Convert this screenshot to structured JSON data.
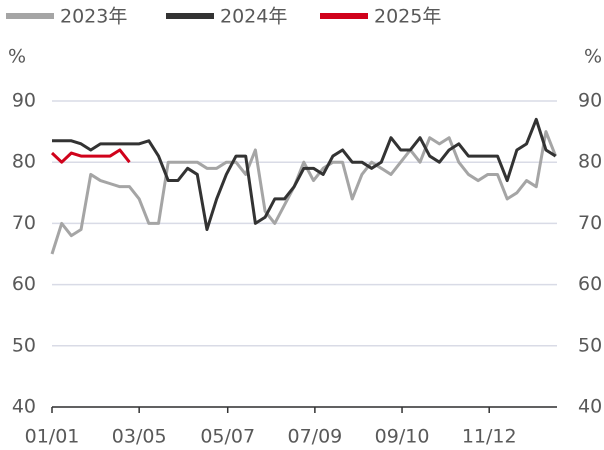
{
  "chart_data": {
    "type": "line",
    "y_unit": "%",
    "x": [
      0,
      7,
      14,
      21,
      28,
      35,
      42,
      49,
      56,
      63,
      70,
      77,
      84,
      91,
      98,
      105,
      112,
      119,
      126,
      133,
      140,
      147,
      154,
      161,
      168,
      175,
      182,
      189,
      196,
      203,
      210,
      217,
      224,
      231,
      238,
      245,
      252,
      259,
      266,
      273,
      280,
      287,
      294,
      301,
      308,
      315,
      322,
      329,
      336,
      343,
      350,
      357,
      364
    ],
    "xlim": [
      0,
      365
    ],
    "xticks": [
      {
        "value": 0,
        "label": "01/01"
      },
      {
        "value": 63,
        "label": "03/05"
      },
      {
        "value": 127,
        "label": "05/07"
      },
      {
        "value": 190,
        "label": "07/09"
      },
      {
        "value": 253,
        "label": "09/10"
      },
      {
        "value": 316,
        "label": "11/12"
      }
    ],
    "ylim": [
      40,
      90
    ],
    "yticks": [
      40,
      50,
      60,
      70,
      80,
      90
    ],
    "y2lim": [
      40,
      90
    ],
    "y2ticks": [
      40,
      50,
      60,
      70,
      80,
      90
    ],
    "grid": true,
    "legend": "top",
    "series": [
      {
        "name": "2023年",
        "color": "#a5a5a5",
        "values": [
          65,
          70,
          68,
          69,
          78,
          77,
          76.5,
          76,
          76,
          74,
          70,
          70,
          80,
          80,
          80,
          80,
          79,
          79,
          80,
          80,
          78,
          82,
          72,
          70,
          73,
          76,
          80,
          77,
          79,
          80,
          80,
          74,
          78,
          80,
          79,
          78,
          80,
          82,
          80,
          84,
          83,
          84,
          80,
          78,
          77,
          78,
          78,
          74,
          75,
          77,
          76,
          85,
          81
        ]
      },
      {
        "name": "2024年",
        "color": "#333333",
        "values": [
          83.5,
          83.5,
          83.5,
          83,
          82,
          83,
          83,
          83,
          83,
          83,
          83.5,
          81,
          77,
          77,
          79,
          78,
          69,
          74,
          78,
          81,
          81,
          70,
          71,
          74,
          74,
          76,
          79,
          79,
          78,
          81,
          82,
          80,
          80,
          79,
          80,
          84,
          82,
          82,
          84,
          81,
          80,
          82,
          83,
          81,
          81,
          81,
          81,
          77,
          82,
          83,
          87,
          82,
          81
        ]
      },
      {
        "name": "2025年",
        "color": "#d0021b",
        "values": [
          81.5,
          80,
          81.5,
          81,
          81,
          81,
          81,
          82,
          80,
          null,
          null,
          null,
          null,
          null,
          null,
          null,
          null,
          null,
          null,
          null,
          null,
          null,
          null,
          null,
          null,
          null,
          null,
          null,
          null,
          null,
          null,
          null,
          null,
          null,
          null,
          null,
          null,
          null,
          null,
          null,
          null,
          null,
          null,
          null,
          null,
          null,
          null,
          null,
          null,
          null,
          null,
          null,
          null
        ]
      }
    ]
  }
}
